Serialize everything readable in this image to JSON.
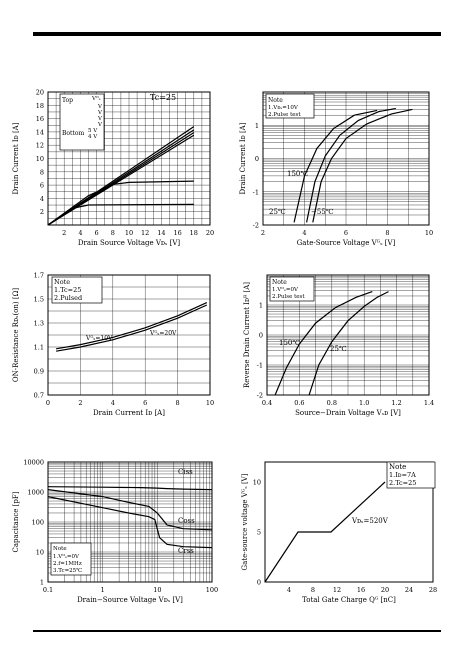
{
  "chart_data": [
    {
      "id": "c1",
      "type": "line",
      "chart_index": 1,
      "xlabel": "Drain   Source  Voltage  Vᴅₛ  [V]",
      "ylabel": "Drain  Current  Iᴅ  [A]",
      "annotations": [
        "Tc=25",
        "Top",
        "Bottom",
        "Vᴳₛ",
        "V",
        "V",
        "V",
        "V",
        "5    V",
        "4    V"
      ],
      "x_ticks": [
        "2",
        "4",
        "6",
        "8",
        "10",
        "12",
        "14",
        "16",
        "18",
        "20"
      ],
      "y_ticks": [
        "2",
        "4",
        "6",
        "8",
        "10",
        "12",
        "14",
        "16",
        "18",
        "20"
      ],
      "xlim": [
        0,
        20
      ],
      "ylim": [
        0,
        20
      ],
      "grid": true,
      "series": [
        {
          "x": [
            0,
            18
          ],
          "y": [
            0,
            14.8
          ]
        },
        {
          "x": [
            0,
            18
          ],
          "y": [
            0,
            14.3
          ]
        },
        {
          "x": [
            0,
            18
          ],
          "y": [
            0,
            13.9
          ]
        },
        {
          "x": [
            0,
            18
          ],
          "y": [
            0,
            13.5
          ]
        },
        {
          "x": [
            0,
            5,
            8,
            10,
            18
          ],
          "y": [
            0,
            4.4,
            6.1,
            6.4,
            6.6
          ]
        },
        {
          "x": [
            0,
            3,
            5,
            18
          ],
          "y": [
            0,
            2.5,
            3.0,
            3.1
          ]
        }
      ]
    },
    {
      "id": "c2",
      "type": "line",
      "chart_index": 2,
      "y_scale": "log",
      "xlabel": "Gate-Source  Voltage  Vᴳₛ  [V]",
      "ylabel": "Drain  Current  Iᴅ  [A]",
      "annotations": [
        "Note",
        "1.Vᴅₛ=10V",
        "2.Pulse  test",
        "150℃",
        "25℃",
        "−55℃"
      ],
      "x_ticks": [
        "2",
        "4",
        "6",
        "8",
        "10"
      ],
      "y_ticks": [
        "1",
        "0",
        "-1",
        "-2"
      ],
      "xlim": [
        2,
        10
      ],
      "ylim": [
        0.01,
        100
      ],
      "grid": true,
      "series": [
        {
          "name": "150℃",
          "x": [
            3.5,
            4,
            4.6,
            5.4,
            6.4,
            7.5
          ],
          "y": [
            0.012,
            0.3,
            2,
            8,
            20,
            28
          ]
        },
        {
          "name": "25℃",
          "x": [
            4.1,
            4.5,
            5.0,
            5.7,
            6.6,
            7.6,
            8.4
          ],
          "y": [
            0.012,
            0.2,
            1.2,
            5,
            14,
            26,
            32
          ]
        },
        {
          "name": "−55℃",
          "x": [
            4.4,
            4.8,
            5.3,
            6.0,
            7.0,
            8.2,
            9.2
          ],
          "y": [
            0.012,
            0.2,
            1,
            4,
            11,
            22,
            30
          ]
        }
      ]
    },
    {
      "id": "c3",
      "type": "line",
      "chart_index": 3,
      "xlabel": "Drain  Current  Iᴅ  [A]",
      "ylabel": "ON-Resistance  Rᴅₛ(on)  [Ω]",
      "annotations": [
        "Note",
        "1.Tc=25",
        "2.Pulsed",
        "Vᴳₛ=10V",
        "Vᴳₛ=20V"
      ],
      "x_ticks": [
        "0",
        "2",
        "4",
        "6",
        "8",
        "10"
      ],
      "y_ticks": [
        "0.7",
        "0.9",
        "1.1",
        "1.3",
        "1.5",
        "1.7"
      ],
      "xlim": [
        0,
        10
      ],
      "ylim": [
        0.7,
        1.7
      ],
      "grid": true,
      "series": [
        {
          "name": "Vᴳₛ=10V",
          "x": [
            0.5,
            2,
            4,
            6,
            8,
            9.8
          ],
          "y": [
            1.085,
            1.12,
            1.18,
            1.26,
            1.36,
            1.47
          ]
        },
        {
          "name": "Vᴳₛ=20V",
          "x": [
            0.5,
            2,
            4,
            6,
            8,
            9.8
          ],
          "y": [
            1.065,
            1.1,
            1.16,
            1.24,
            1.34,
            1.45
          ]
        }
      ]
    },
    {
      "id": "c4",
      "type": "line",
      "chart_index": 4,
      "y_scale": "log",
      "xlabel": "Source−Drain  Voltage  Vₛᴅ  [V]",
      "ylabel": "Reverse  Drain  Current  Iᴅᴿ  [A]",
      "annotations": [
        "Note",
        "1.Vᴳₛ=0V",
        "2.Pulse  test",
        "150℃",
        "25℃"
      ],
      "x_ticks": [
        "0.4",
        "0.6",
        "0.8",
        "1.0",
        "1.2",
        "1.4"
      ],
      "y_ticks": [
        "1",
        "0",
        "-1",
        "-2"
      ],
      "xlim": [
        0.4,
        1.4
      ],
      "ylim": [
        0.01,
        100
      ],
      "grid": true,
      "series": [
        {
          "name": "150℃",
          "x": [
            0.45,
            0.52,
            0.6,
            0.7,
            0.82,
            0.95,
            1.05
          ],
          "y": [
            0.01,
            0.08,
            0.5,
            2.5,
            8,
            18,
            28
          ]
        },
        {
          "name": "25℃",
          "x": [
            0.66,
            0.72,
            0.8,
            0.9,
            1.0,
            1.08,
            1.15
          ],
          "y": [
            0.01,
            0.1,
            0.6,
            3,
            9,
            18,
            28
          ]
        }
      ]
    },
    {
      "id": "c5",
      "type": "line",
      "chart_index": 5,
      "x_scale": "log",
      "y_scale": "log",
      "xlabel": "Drain−Source  Voltage  Vᴅₛ  [V]",
      "ylabel": "Capacitance  [pF]",
      "annotations": [
        "Note",
        "1.Vᴳₛ=0V",
        "2.f=1MHz",
        "3.Tc=25℃",
        "Ciss",
        "Coss",
        "Crss"
      ],
      "x_ticks": [
        "0.1",
        "1",
        "10",
        "100"
      ],
      "y_ticks": [
        "1",
        "10",
        "100",
        "1000",
        "10000"
      ],
      "xlim": [
        0.1,
        100
      ],
      "ylim": [
        1,
        10000
      ],
      "grid": true,
      "series": [
        {
          "name": "Ciss",
          "x": [
            0.1,
            1,
            5,
            10,
            15,
            30,
            100
          ],
          "y": [
            1500,
            1450,
            1400,
            1350,
            1300,
            1250,
            1200
          ]
        },
        {
          "name": "Coss",
          "x": [
            0.1,
            1,
            3,
            7,
            10,
            15,
            30,
            100
          ],
          "y": [
            1200,
            700,
            450,
            330,
            200,
            80,
            60,
            55
          ]
        },
        {
          "name": "Crss",
          "x": [
            0.1,
            1,
            3,
            7,
            9,
            11,
            15,
            30,
            100
          ],
          "y": [
            700,
            300,
            200,
            150,
            120,
            30,
            18,
            15,
            14
          ]
        }
      ]
    },
    {
      "id": "c6",
      "type": "line",
      "chart_index": 6,
      "xlabel": "Total  Gate  Charge  Qᴳ  [nC]",
      "ylabel": "Gate-source  voltage  Vᴳₛ  [V]",
      "annotations": [
        "Note",
        "1.Iᴅ=7A",
        "2.Tc=25",
        "Vᴅₛ=520V"
      ],
      "x_ticks": [
        "4",
        "8",
        "12",
        "16",
        "20",
        "24",
        "28"
      ],
      "y_ticks": [
        "0",
        "5",
        "10"
      ],
      "xlim": [
        0,
        28
      ],
      "ylim": [
        0,
        12
      ],
      "grid": false,
      "series": [
        {
          "name": "Vᴅₛ=520V",
          "x": [
            0,
            5.5,
            11,
            20
          ],
          "y": [
            0,
            5,
            5,
            10
          ]
        }
      ]
    }
  ]
}
